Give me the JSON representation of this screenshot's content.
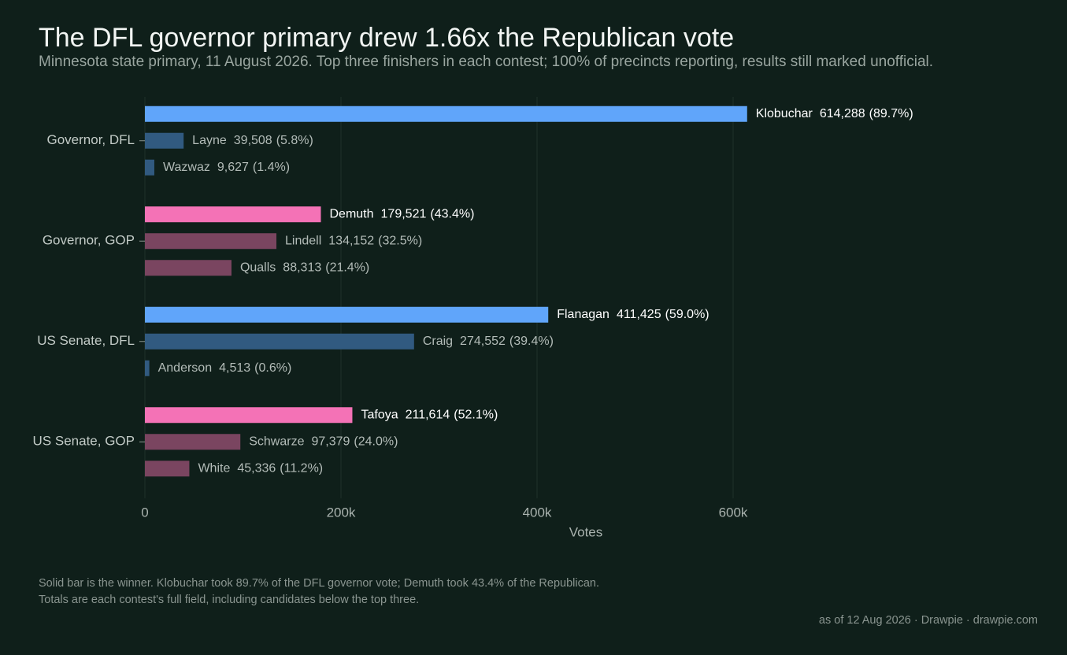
{
  "chart_data": {
    "type": "bar",
    "orientation": "horizontal",
    "title": "The DFL governor primary drew 1.66x the Republican vote",
    "subtitle": "Minnesota state primary, 11 August 2026. Top three finishers in each contest; 100% of precincts reporting, results still marked unofficial.",
    "x_label": "Votes",
    "categories": [
      "Governor, DFL",
      "Governor, GOP",
      "US Senate, DFL",
      "US Senate, GOP"
    ],
    "candidates": [
      [
        "Klobuchar",
        "Layne",
        "Wazwaz"
      ],
      [
        "Demuth",
        "Lindell",
        "Qualls"
      ],
      [
        "Flanagan",
        "Craig",
        "Anderson"
      ],
      [
        "Tafoya",
        "Schwarze",
        "White"
      ]
    ],
    "values": [
      [
        614288,
        39508,
        9627
      ],
      [
        179521,
        134152,
        88313
      ],
      [
        411425,
        274552,
        4513
      ],
      [
        211614,
        97379,
        45336
      ]
    ],
    "value_labels": [
      [
        "614,288",
        "39,508",
        "9,627"
      ],
      [
        "179,521",
        "134,152",
        "88,313"
      ],
      [
        "411,425",
        "274,552",
        "4,513"
      ],
      [
        "211,614",
        "97,379",
        "45,336"
      ]
    ],
    "shares": [
      [
        89.7,
        5.8,
        1.4
      ],
      [
        43.4,
        32.5,
        21.4
      ],
      [
        59.0,
        39.4,
        0.6
      ],
      [
        52.1,
        24.0,
        11.2
      ]
    ],
    "share_labels": [
      [
        "(89.7%)",
        "(5.8%)",
        "(1.4%)"
      ],
      [
        "(43.4%)",
        "(32.5%)",
        "(21.4%)"
      ],
      [
        "(59.0%)",
        "(39.4%)",
        "(0.6%)"
      ],
      [
        "(52.1%)",
        "(24.0%)",
        "(11.2%)"
      ]
    ],
    "colors": [
      [
        "#60a5fa",
        "#315a80",
        "#315a80"
      ],
      [
        "#f472b6",
        "#7a4560",
        "#7a4560"
      ],
      [
        "#60a5fa",
        "#315a80",
        "#315a80"
      ],
      [
        "#f472b6",
        "#7a4560",
        "#7a4560"
      ]
    ],
    "xlim": [
      0,
      700000
    ],
    "xticks": [
      0,
      {
        "value": 200000,
        "label": "200k"
      },
      {
        "value": 400000,
        "label": "400k"
      },
      {
        "value": 600000,
        "label": "600k"
      }
    ],
    "grid": true,
    "footnotes": [
      "Solid bar is the winner. Klobuchar took 89.7% of the DFL governor vote; Demuth took 43.4% of the Republican.",
      "Totals are each contest's full field, including candidates below the top three."
    ],
    "source": "as of 12 Aug 2026  ·  Drawpie · drawpie.com"
  }
}
